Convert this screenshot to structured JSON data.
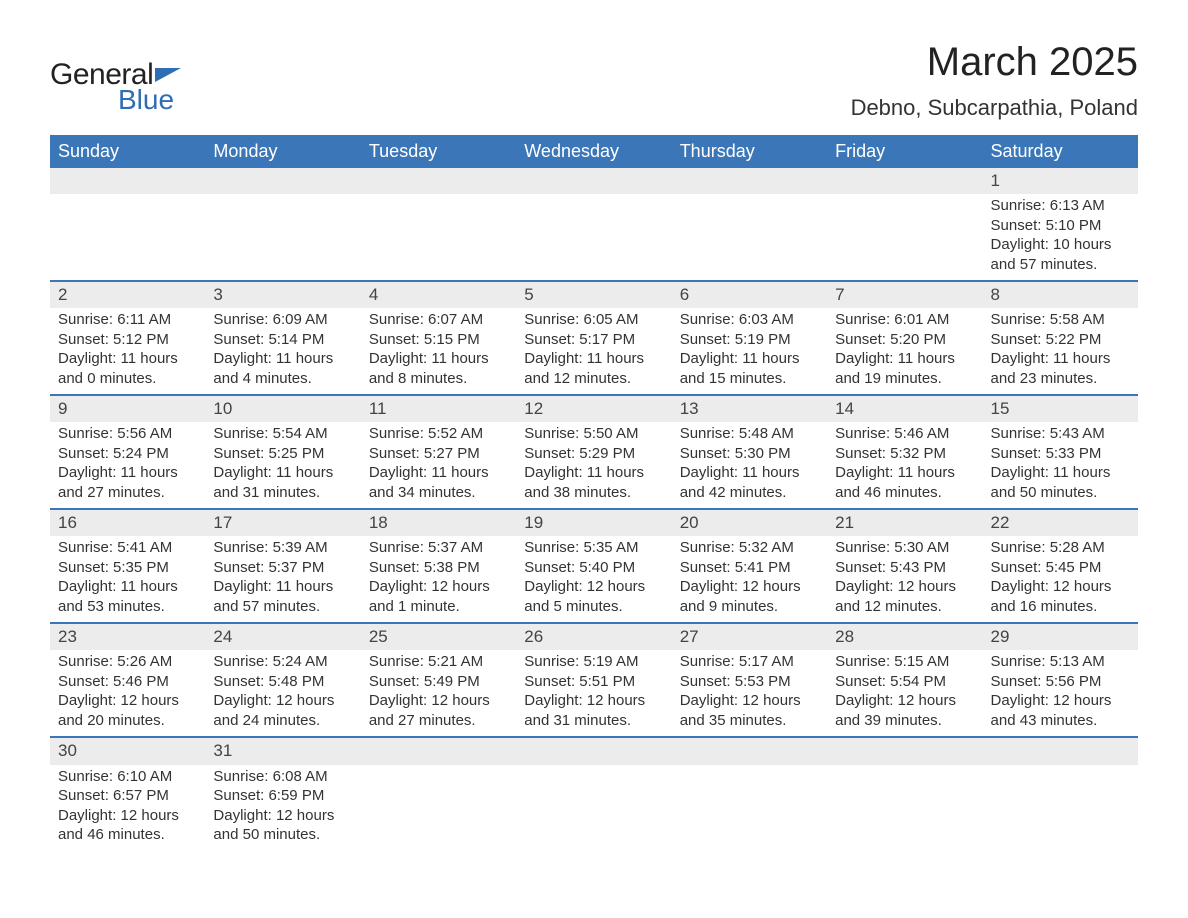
{
  "logo": {
    "word1": "General",
    "word2": "Blue"
  },
  "header": {
    "title": "March 2025",
    "location": "Debno, Subcarpathia, Poland"
  },
  "calendar": {
    "header_bg": "#3b77b8",
    "header_fg": "#ffffff",
    "daynum_bg": "#ececec",
    "row_border": "#3b77b8",
    "text_color": "#333333",
    "columns": [
      "Sunday",
      "Monday",
      "Tuesday",
      "Wednesday",
      "Thursday",
      "Friday",
      "Saturday"
    ],
    "weeks": [
      [
        null,
        null,
        null,
        null,
        null,
        null,
        {
          "n": "1",
          "sr": "6:13 AM",
          "ss": "5:10 PM",
          "dl": "10 hours and 57 minutes."
        }
      ],
      [
        {
          "n": "2",
          "sr": "6:11 AM",
          "ss": "5:12 PM",
          "dl": "11 hours and 0 minutes."
        },
        {
          "n": "3",
          "sr": "6:09 AM",
          "ss": "5:14 PM",
          "dl": "11 hours and 4 minutes."
        },
        {
          "n": "4",
          "sr": "6:07 AM",
          "ss": "5:15 PM",
          "dl": "11 hours and 8 minutes."
        },
        {
          "n": "5",
          "sr": "6:05 AM",
          "ss": "5:17 PM",
          "dl": "11 hours and 12 minutes."
        },
        {
          "n": "6",
          "sr": "6:03 AM",
          "ss": "5:19 PM",
          "dl": "11 hours and 15 minutes."
        },
        {
          "n": "7",
          "sr": "6:01 AM",
          "ss": "5:20 PM",
          "dl": "11 hours and 19 minutes."
        },
        {
          "n": "8",
          "sr": "5:58 AM",
          "ss": "5:22 PM",
          "dl": "11 hours and 23 minutes."
        }
      ],
      [
        {
          "n": "9",
          "sr": "5:56 AM",
          "ss": "5:24 PM",
          "dl": "11 hours and 27 minutes."
        },
        {
          "n": "10",
          "sr": "5:54 AM",
          "ss": "5:25 PM",
          "dl": "11 hours and 31 minutes."
        },
        {
          "n": "11",
          "sr": "5:52 AM",
          "ss": "5:27 PM",
          "dl": "11 hours and 34 minutes."
        },
        {
          "n": "12",
          "sr": "5:50 AM",
          "ss": "5:29 PM",
          "dl": "11 hours and 38 minutes."
        },
        {
          "n": "13",
          "sr": "5:48 AM",
          "ss": "5:30 PM",
          "dl": "11 hours and 42 minutes."
        },
        {
          "n": "14",
          "sr": "5:46 AM",
          "ss": "5:32 PM",
          "dl": "11 hours and 46 minutes."
        },
        {
          "n": "15",
          "sr": "5:43 AM",
          "ss": "5:33 PM",
          "dl": "11 hours and 50 minutes."
        }
      ],
      [
        {
          "n": "16",
          "sr": "5:41 AM",
          "ss": "5:35 PM",
          "dl": "11 hours and 53 minutes."
        },
        {
          "n": "17",
          "sr": "5:39 AM",
          "ss": "5:37 PM",
          "dl": "11 hours and 57 minutes."
        },
        {
          "n": "18",
          "sr": "5:37 AM",
          "ss": "5:38 PM",
          "dl": "12 hours and 1 minute."
        },
        {
          "n": "19",
          "sr": "5:35 AM",
          "ss": "5:40 PM",
          "dl": "12 hours and 5 minutes."
        },
        {
          "n": "20",
          "sr": "5:32 AM",
          "ss": "5:41 PM",
          "dl": "12 hours and 9 minutes."
        },
        {
          "n": "21",
          "sr": "5:30 AM",
          "ss": "5:43 PM",
          "dl": "12 hours and 12 minutes."
        },
        {
          "n": "22",
          "sr": "5:28 AM",
          "ss": "5:45 PM",
          "dl": "12 hours and 16 minutes."
        }
      ],
      [
        {
          "n": "23",
          "sr": "5:26 AM",
          "ss": "5:46 PM",
          "dl": "12 hours and 20 minutes."
        },
        {
          "n": "24",
          "sr": "5:24 AM",
          "ss": "5:48 PM",
          "dl": "12 hours and 24 minutes."
        },
        {
          "n": "25",
          "sr": "5:21 AM",
          "ss": "5:49 PM",
          "dl": "12 hours and 27 minutes."
        },
        {
          "n": "26",
          "sr": "5:19 AM",
          "ss": "5:51 PM",
          "dl": "12 hours and 31 minutes."
        },
        {
          "n": "27",
          "sr": "5:17 AM",
          "ss": "5:53 PM",
          "dl": "12 hours and 35 minutes."
        },
        {
          "n": "28",
          "sr": "5:15 AM",
          "ss": "5:54 PM",
          "dl": "12 hours and 39 minutes."
        },
        {
          "n": "29",
          "sr": "5:13 AM",
          "ss": "5:56 PM",
          "dl": "12 hours and 43 minutes."
        }
      ],
      [
        {
          "n": "30",
          "sr": "6:10 AM",
          "ss": "6:57 PM",
          "dl": "12 hours and 46 minutes."
        },
        {
          "n": "31",
          "sr": "6:08 AM",
          "ss": "6:59 PM",
          "dl": "12 hours and 50 minutes."
        },
        null,
        null,
        null,
        null,
        null
      ]
    ],
    "labels": {
      "sunrise": "Sunrise: ",
      "sunset": "Sunset: ",
      "daylight": "Daylight: "
    }
  }
}
